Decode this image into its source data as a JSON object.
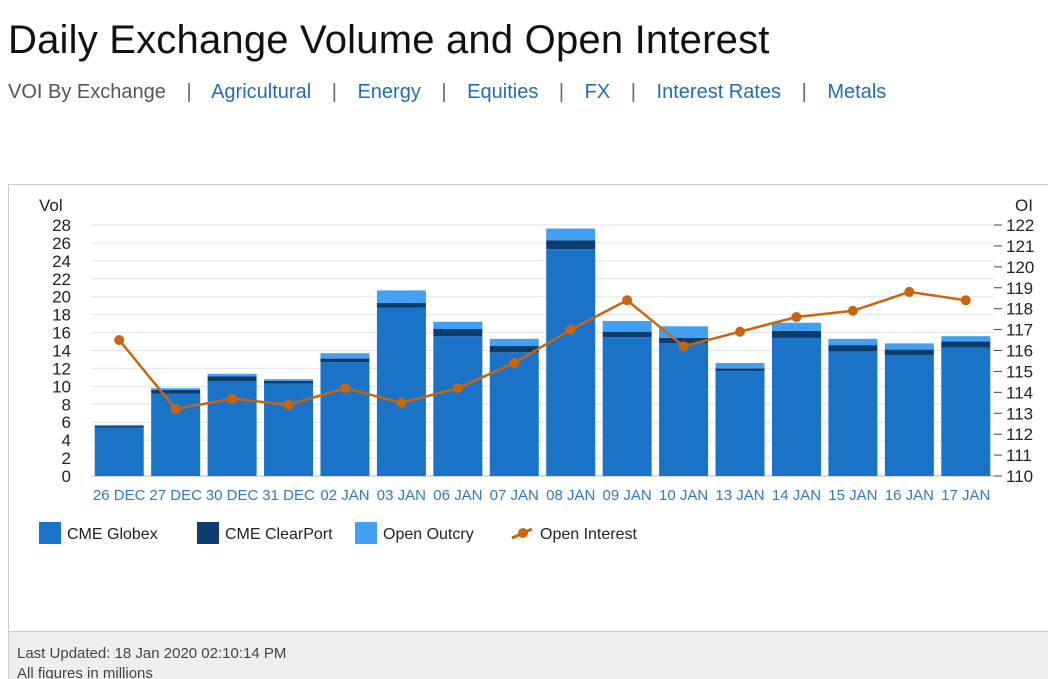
{
  "page": {
    "title": "Daily Exchange Volume and Open Interest"
  },
  "nav": {
    "current": "VOI By Exchange",
    "separator": "|",
    "links": [
      "Agricultural",
      "Energy",
      "Equities",
      "FX",
      "Interest Rates",
      "Metals"
    ]
  },
  "footer": {
    "last_updated": "Last Updated: 18 Jan 2020 02:10:14 PM",
    "note": "All figures in millions"
  },
  "colors": {
    "globex": "#1a73c6",
    "clearport": "#0c3d6e",
    "outcry": "#41a0f2",
    "open_interest": "#c8650e",
    "axis_label": "#2f78c4"
  },
  "chart_data": {
    "type": "bar",
    "stacked": true,
    "categories": [
      "26 DEC",
      "27 DEC",
      "30 DEC",
      "31 DEC",
      "02 JAN",
      "03 JAN",
      "06 JAN",
      "07 JAN",
      "08 JAN",
      "09 JAN",
      "10 JAN",
      "13 JAN",
      "14 JAN",
      "15 JAN",
      "16 JAN",
      "17 JAN"
    ],
    "series": [
      {
        "name": "CME Globex",
        "type": "bar",
        "axis": "left",
        "values": [
          5.4,
          9.2,
          10.6,
          10.3,
          12.7,
          18.8,
          15.6,
          13.8,
          25.3,
          15.5,
          14.8,
          11.7,
          15.4,
          13.9,
          13.5,
          14.3
        ]
      },
      {
        "name": "CME ClearPort",
        "type": "bar",
        "axis": "left",
        "values": [
          0.2,
          0.4,
          0.5,
          0.3,
          0.4,
          0.5,
          0.8,
          0.7,
          1.0,
          0.6,
          0.6,
          0.3,
          0.8,
          0.7,
          0.6,
          0.7
        ]
      },
      {
        "name": "Open Outcry",
        "type": "bar",
        "axis": "left",
        "values": [
          0.1,
          0.2,
          0.3,
          0.2,
          0.6,
          1.4,
          0.8,
          0.8,
          1.3,
          1.2,
          1.3,
          0.6,
          0.9,
          0.7,
          0.7,
          0.6
        ]
      },
      {
        "name": "Open Interest",
        "type": "line",
        "axis": "right",
        "values": [
          116.5,
          113.2,
          113.7,
          113.4,
          114.2,
          113.5,
          114.2,
          115.4,
          117.0,
          118.4,
          116.2,
          116.9,
          117.6,
          117.9,
          118.8,
          118.4
        ]
      }
    ],
    "ylabel_left": "Vol",
    "ylabel_right": "OI",
    "ylim_left": [
      0,
      28
    ],
    "yticks_left": [
      "0",
      "2",
      "4",
      "6",
      "8",
      "10",
      "12",
      "14",
      "16",
      "18",
      "20",
      "22",
      "24",
      "26",
      "28"
    ],
    "ylim_right": [
      110,
      122
    ],
    "yticks_right": [
      "110",
      "111",
      "112",
      "113",
      "114",
      "115",
      "116",
      "117",
      "118",
      "119",
      "120",
      "121",
      "122"
    ],
    "grid": true,
    "legend_position": "bottom-left"
  }
}
